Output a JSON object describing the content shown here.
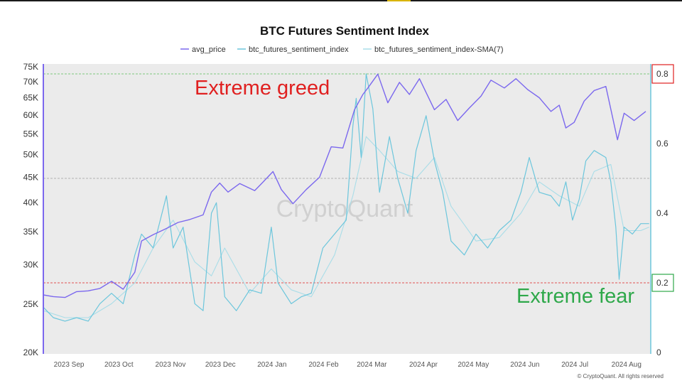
{
  "chart_data": {
    "type": "line",
    "title": "BTC Futures Sentiment Index",
    "legend": [
      "avg_price",
      "btc_futures_sentiment_index",
      "btc_futures_sentiment_index-SMA(7)"
    ],
    "left_axis_ticks": [
      "75K",
      "70K",
      "65K",
      "60K",
      "55K",
      "50K",
      "45K",
      "40K",
      "35K",
      "30K",
      "25K",
      "20K"
    ],
    "left_axis_values": [
      75000,
      70000,
      65000,
      60000,
      55000,
      50000,
      45000,
      40000,
      35000,
      30000,
      25000,
      20000
    ],
    "left_axis_scale": "log",
    "right_axis_ticks": [
      "0.8",
      "0.6",
      "0.4",
      "0.2",
      "0"
    ],
    "right_axis_values": [
      0.8,
      0.6,
      0.4,
      0.2,
      0
    ],
    "x_ticks": [
      "2023 Sep",
      "2023 Oct",
      "2023 Nov",
      "2023 Dec",
      "2024 Jan",
      "2024 Feb",
      "2024 Mar",
      "2024 Apr",
      "2024 May",
      "2024 Jun",
      "2024 Jul",
      "2024 Aug"
    ],
    "x_tick_dates": [
      "2023-09-01",
      "2023-10-01",
      "2023-11-01",
      "2023-12-01",
      "2024-01-01",
      "2024-02-01",
      "2024-03-01",
      "2024-04-01",
      "2024-05-01",
      "2024-06-01",
      "2024-07-01",
      "2024-08-01"
    ],
    "x_range": [
      "2023-08-26",
      "2024-08-25"
    ],
    "annotations": {
      "extreme_greed": "Extreme greed",
      "extreme_fear": "Extreme fear",
      "greed_level": 0.8,
      "fear_level": 0.2,
      "neutral_level": 0.5
    },
    "watermark": "CryptoQuant",
    "credit": "© CryptoQuant. All rights reserved",
    "colors": {
      "avg_price": "#7b68ee",
      "sentiment": "#6cc6dc",
      "sma": "#a9dde8",
      "greed": "#e02020",
      "fear": "#2ea84a",
      "plot_bg": "#ebebeb"
    },
    "series": [
      {
        "name": "avg_price",
        "axis": "left",
        "points": [
          [
            "2023-08-26",
            26100
          ],
          [
            "2023-09-01",
            25900
          ],
          [
            "2023-09-08",
            25800
          ],
          [
            "2023-09-15",
            26500
          ],
          [
            "2023-09-22",
            26600
          ],
          [
            "2023-09-29",
            26900
          ],
          [
            "2023-10-06",
            27800
          ],
          [
            "2023-10-13",
            26800
          ],
          [
            "2023-10-20",
            29000
          ],
          [
            "2023-10-24",
            33500
          ],
          [
            "2023-10-31",
            34500
          ],
          [
            "2023-11-08",
            35500
          ],
          [
            "2023-11-15",
            36500
          ],
          [
            "2023-11-22",
            37000
          ],
          [
            "2023-11-30",
            37800
          ],
          [
            "2023-12-05",
            42000
          ],
          [
            "2023-12-10",
            43800
          ],
          [
            "2023-12-15",
            42000
          ],
          [
            "2023-12-22",
            43700
          ],
          [
            "2023-12-31",
            42300
          ],
          [
            "2024-01-05",
            44000
          ],
          [
            "2024-01-11",
            46200
          ],
          [
            "2024-01-16",
            42500
          ],
          [
            "2024-01-23",
            39800
          ],
          [
            "2024-01-31",
            42500
          ],
          [
            "2024-02-08",
            45000
          ],
          [
            "2024-02-15",
            51800
          ],
          [
            "2024-02-22",
            51500
          ],
          [
            "2024-02-29",
            61500
          ],
          [
            "2024-03-05",
            66000
          ],
          [
            "2024-03-08",
            68000
          ],
          [
            "2024-03-14",
            72500
          ],
          [
            "2024-03-20",
            63500
          ],
          [
            "2024-03-27",
            69800
          ],
          [
            "2024-04-02",
            66000
          ],
          [
            "2024-04-08",
            71000
          ],
          [
            "2024-04-17",
            61500
          ],
          [
            "2024-04-24",
            64500
          ],
          [
            "2024-05-01",
            58500
          ],
          [
            "2024-05-08",
            62000
          ],
          [
            "2024-05-15",
            65500
          ],
          [
            "2024-05-21",
            70500
          ],
          [
            "2024-05-29",
            68000
          ],
          [
            "2024-06-05",
            71000
          ],
          [
            "2024-06-12",
            67500
          ],
          [
            "2024-06-19",
            65000
          ],
          [
            "2024-06-26",
            61000
          ],
          [
            "2024-07-01",
            62800
          ],
          [
            "2024-07-05",
            56500
          ],
          [
            "2024-07-10",
            58000
          ],
          [
            "2024-07-16",
            64000
          ],
          [
            "2024-07-22",
            67200
          ],
          [
            "2024-07-29",
            68500
          ],
          [
            "2024-08-05",
            53500
          ],
          [
            "2024-08-09",
            60500
          ],
          [
            "2024-08-15",
            58500
          ],
          [
            "2024-08-22",
            61000
          ]
        ]
      },
      {
        "name": "btc_futures_sentiment_index",
        "axis": "right",
        "points": [
          [
            "2023-08-26",
            0.13
          ],
          [
            "2023-09-01",
            0.1
          ],
          [
            "2023-09-08",
            0.09
          ],
          [
            "2023-09-15",
            0.1
          ],
          [
            "2023-09-22",
            0.09
          ],
          [
            "2023-09-29",
            0.14
          ],
          [
            "2023-10-06",
            0.17
          ],
          [
            "2023-10-13",
            0.14
          ],
          [
            "2023-10-20",
            0.28
          ],
          [
            "2023-10-24",
            0.34
          ],
          [
            "2023-10-31",
            0.3
          ],
          [
            "2023-11-08",
            0.45
          ],
          [
            "2023-11-12",
            0.3
          ],
          [
            "2023-11-18",
            0.36
          ],
          [
            "2023-11-25",
            0.14
          ],
          [
            "2023-11-30",
            0.12
          ],
          [
            "2023-12-05",
            0.4
          ],
          [
            "2023-12-08",
            0.43
          ],
          [
            "2023-12-13",
            0.16
          ],
          [
            "2023-12-20",
            0.12
          ],
          [
            "2023-12-28",
            0.18
          ],
          [
            "2024-01-04",
            0.17
          ],
          [
            "2024-01-10",
            0.36
          ],
          [
            "2024-01-14",
            0.2
          ],
          [
            "2024-01-22",
            0.14
          ],
          [
            "2024-01-28",
            0.16
          ],
          [
            "2024-02-03",
            0.17
          ],
          [
            "2024-02-10",
            0.3
          ],
          [
            "2024-02-17",
            0.34
          ],
          [
            "2024-02-24",
            0.38
          ],
          [
            "2024-02-28",
            0.65
          ],
          [
            "2024-03-01",
            0.73
          ],
          [
            "2024-03-04",
            0.56
          ],
          [
            "2024-03-07",
            0.8
          ],
          [
            "2024-03-11",
            0.7
          ],
          [
            "2024-03-15",
            0.46
          ],
          [
            "2024-03-21",
            0.62
          ],
          [
            "2024-03-26",
            0.5
          ],
          [
            "2024-04-01",
            0.4
          ],
          [
            "2024-04-06",
            0.58
          ],
          [
            "2024-04-12",
            0.68
          ],
          [
            "2024-04-17",
            0.55
          ],
          [
            "2024-04-22",
            0.46
          ],
          [
            "2024-04-27",
            0.32
          ],
          [
            "2024-05-05",
            0.28
          ],
          [
            "2024-05-12",
            0.34
          ],
          [
            "2024-05-19",
            0.3
          ],
          [
            "2024-05-26",
            0.35
          ],
          [
            "2024-06-02",
            0.38
          ],
          [
            "2024-06-08",
            0.46
          ],
          [
            "2024-06-13",
            0.56
          ],
          [
            "2024-06-19",
            0.46
          ],
          [
            "2024-06-26",
            0.45
          ],
          [
            "2024-07-01",
            0.42
          ],
          [
            "2024-07-05",
            0.49
          ],
          [
            "2024-07-09",
            0.38
          ],
          [
            "2024-07-13",
            0.44
          ],
          [
            "2024-07-17",
            0.55
          ],
          [
            "2024-07-22",
            0.58
          ],
          [
            "2024-07-29",
            0.56
          ],
          [
            "2024-08-01",
            0.49
          ],
          [
            "2024-08-04",
            0.36
          ],
          [
            "2024-08-06",
            0.21
          ],
          [
            "2024-08-09",
            0.36
          ],
          [
            "2024-08-14",
            0.34
          ],
          [
            "2024-08-19",
            0.37
          ],
          [
            "2024-08-24",
            0.37
          ]
        ]
      },
      {
        "name": "btc_futures_sentiment_index-SMA(7)",
        "axis": "right",
        "points": [
          [
            "2023-08-26",
            0.12
          ],
          [
            "2023-09-08",
            0.1
          ],
          [
            "2023-09-22",
            0.1
          ],
          [
            "2023-10-06",
            0.14
          ],
          [
            "2023-10-20",
            0.2
          ],
          [
            "2023-10-31",
            0.3
          ],
          [
            "2023-11-12",
            0.38
          ],
          [
            "2023-11-25",
            0.26
          ],
          [
            "2023-12-05",
            0.22
          ],
          [
            "2023-12-13",
            0.3
          ],
          [
            "2023-12-28",
            0.17
          ],
          [
            "2024-01-10",
            0.24
          ],
          [
            "2024-01-22",
            0.18
          ],
          [
            "2024-02-03",
            0.16
          ],
          [
            "2024-02-17",
            0.28
          ],
          [
            "2024-02-28",
            0.45
          ],
          [
            "2024-03-07",
            0.62
          ],
          [
            "2024-03-15",
            0.58
          ],
          [
            "2024-03-26",
            0.52
          ],
          [
            "2024-04-06",
            0.5
          ],
          [
            "2024-04-17",
            0.56
          ],
          [
            "2024-04-27",
            0.42
          ],
          [
            "2024-05-12",
            0.32
          ],
          [
            "2024-05-26",
            0.33
          ],
          [
            "2024-06-08",
            0.4
          ],
          [
            "2024-06-19",
            0.49
          ],
          [
            "2024-07-01",
            0.45
          ],
          [
            "2024-07-13",
            0.42
          ],
          [
            "2024-07-22",
            0.52
          ],
          [
            "2024-08-01",
            0.54
          ],
          [
            "2024-08-09",
            0.35
          ],
          [
            "2024-08-19",
            0.35
          ],
          [
            "2024-08-24",
            0.36
          ]
        ]
      }
    ]
  }
}
